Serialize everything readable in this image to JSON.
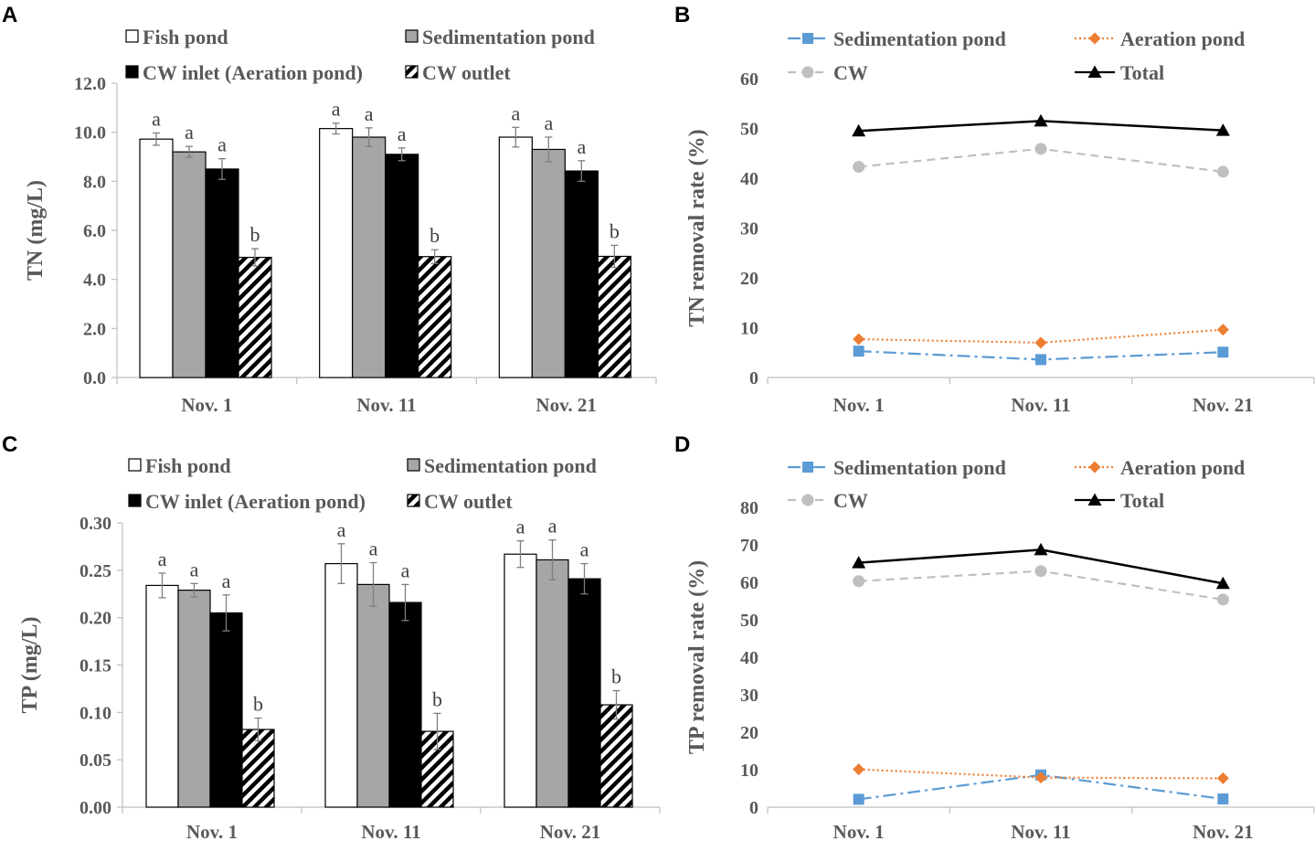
{
  "figure": {
    "colors": {
      "fish": "#ffffff",
      "sed": "#a6a6a6",
      "cw_inlet": "#000000",
      "sed_line": "#5b9bd5",
      "aer_line": "#ed7d31",
      "cw_line": "#bfbfbf",
      "total_line": "#000000"
    }
  },
  "chart_data": [
    {
      "panel": "A",
      "type": "bar",
      "title": "",
      "xlabel": "",
      "ylabel": "TN  (mg/L)",
      "ylim": [
        0,
        12
      ],
      "yticks": [
        "0.0",
        "2.0",
        "4.0",
        "6.0",
        "8.0",
        "10.0",
        "12.0"
      ],
      "categories": [
        "Nov. 1",
        "Nov. 11",
        "Nov. 21"
      ],
      "legend": [
        "Fish pond",
        "Sedimentation pond",
        "CW inlet (Aeration pond)",
        "CW outlet"
      ],
      "series": [
        {
          "name": "Fish pond",
          "pattern": "white",
          "values": [
            9.72,
            10.15,
            9.8
          ],
          "errors": [
            0.25,
            0.22,
            0.4
          ],
          "letters": [
            "a",
            "a",
            "a"
          ]
        },
        {
          "name": "Sedimentation pond",
          "pattern": "gray",
          "values": [
            9.2,
            9.8,
            9.3
          ],
          "errors": [
            0.22,
            0.38,
            0.5
          ],
          "letters": [
            "a",
            "a",
            "a"
          ]
        },
        {
          "name": "CW inlet (Aeration pond)",
          "pattern": "black",
          "values": [
            8.5,
            9.1,
            8.42
          ],
          "errors": [
            0.42,
            0.26,
            0.42
          ],
          "letters": [
            "a",
            "a",
            "a"
          ]
        },
        {
          "name": "CW outlet",
          "pattern": "hatch",
          "values": [
            4.9,
            4.93,
            4.94
          ],
          "errors": [
            0.35,
            0.28,
            0.45
          ],
          "letters": [
            "b",
            "b",
            "b"
          ]
        }
      ]
    },
    {
      "panel": "B",
      "type": "line",
      "title": "",
      "xlabel": "",
      "ylabel": "TN removal rate (%)",
      "ylim": [
        0,
        60
      ],
      "yticks": [
        "0",
        "10",
        "20",
        "30",
        "40",
        "50",
        "60"
      ],
      "categories": [
        "Nov. 1",
        "Nov. 11",
        "Nov. 21"
      ],
      "legend": [
        "Sedimentation pond",
        "Aeration pond",
        "CW",
        "Total"
      ],
      "series": [
        {
          "name": "Sedimentation pond",
          "style": "sed",
          "values": [
            5.3,
            3.6,
            5.1
          ]
        },
        {
          "name": "Aeration pond",
          "style": "aer",
          "values": [
            7.7,
            7.0,
            9.6
          ]
        },
        {
          "name": "CW",
          "style": "cw",
          "values": [
            42.3,
            45.9,
            41.3
          ]
        },
        {
          "name": "Total",
          "style": "total",
          "values": [
            49.5,
            51.5,
            49.6
          ]
        }
      ]
    },
    {
      "panel": "C",
      "type": "bar",
      "title": "",
      "xlabel": "",
      "ylabel": "TP  (mg/L)",
      "ylim": [
        0,
        0.3
      ],
      "yticks": [
        "0.00",
        "0.05",
        "0.10",
        "0.15",
        "0.20",
        "0.25",
        "0.30"
      ],
      "categories": [
        "Nov. 1",
        "Nov. 11",
        "Nov. 21"
      ],
      "legend": [
        "Fish pond",
        "Sedimentation pond",
        "CW inlet (Aeration pond)",
        "CW outlet"
      ],
      "series": [
        {
          "name": "Fish pond",
          "pattern": "white",
          "values": [
            0.234,
            0.257,
            0.267
          ],
          "errors": [
            0.013,
            0.021,
            0.014
          ],
          "letters": [
            "a",
            "a",
            "a"
          ]
        },
        {
          "name": "Sedimentation pond",
          "pattern": "gray",
          "values": [
            0.229,
            0.235,
            0.261
          ],
          "errors": [
            0.007,
            0.023,
            0.021
          ],
          "letters": [
            "a",
            "a",
            "a"
          ]
        },
        {
          "name": "CW inlet (Aeration pond)",
          "pattern": "black",
          "values": [
            0.205,
            0.216,
            0.241
          ],
          "errors": [
            0.019,
            0.019,
            0.016
          ],
          "letters": [
            "a",
            "a",
            "a"
          ]
        },
        {
          "name": "CW outlet",
          "pattern": "hatch",
          "values": [
            0.082,
            0.08,
            0.108
          ],
          "errors": [
            0.012,
            0.019,
            0.015
          ],
          "letters": [
            "b",
            "b",
            "b"
          ]
        }
      ]
    },
    {
      "panel": "D",
      "type": "line",
      "title": "",
      "xlabel": "",
      "ylabel": "TP removal rate (%)",
      "ylim": [
        0,
        80
      ],
      "yticks": [
        "0",
        "10",
        "20",
        "30",
        "40",
        "50",
        "60",
        "70",
        "80"
      ],
      "categories": [
        "Nov. 1",
        "Nov. 11",
        "Nov. 21"
      ],
      "legend": [
        "Sedimentation pond",
        "Aeration pond",
        "CW",
        "Total"
      ],
      "series": [
        {
          "name": "Sedimentation pond",
          "style": "sed",
          "values": [
            2.1,
            8.6,
            2.2
          ]
        },
        {
          "name": "Aeration pond",
          "style": "aer",
          "values": [
            10.1,
            7.9,
            7.7
          ]
        },
        {
          "name": "CW",
          "style": "cw",
          "values": [
            60.3,
            63.0,
            55.4
          ]
        },
        {
          "name": "Total",
          "style": "total",
          "values": [
            65.2,
            68.7,
            59.7
          ]
        }
      ]
    }
  ]
}
